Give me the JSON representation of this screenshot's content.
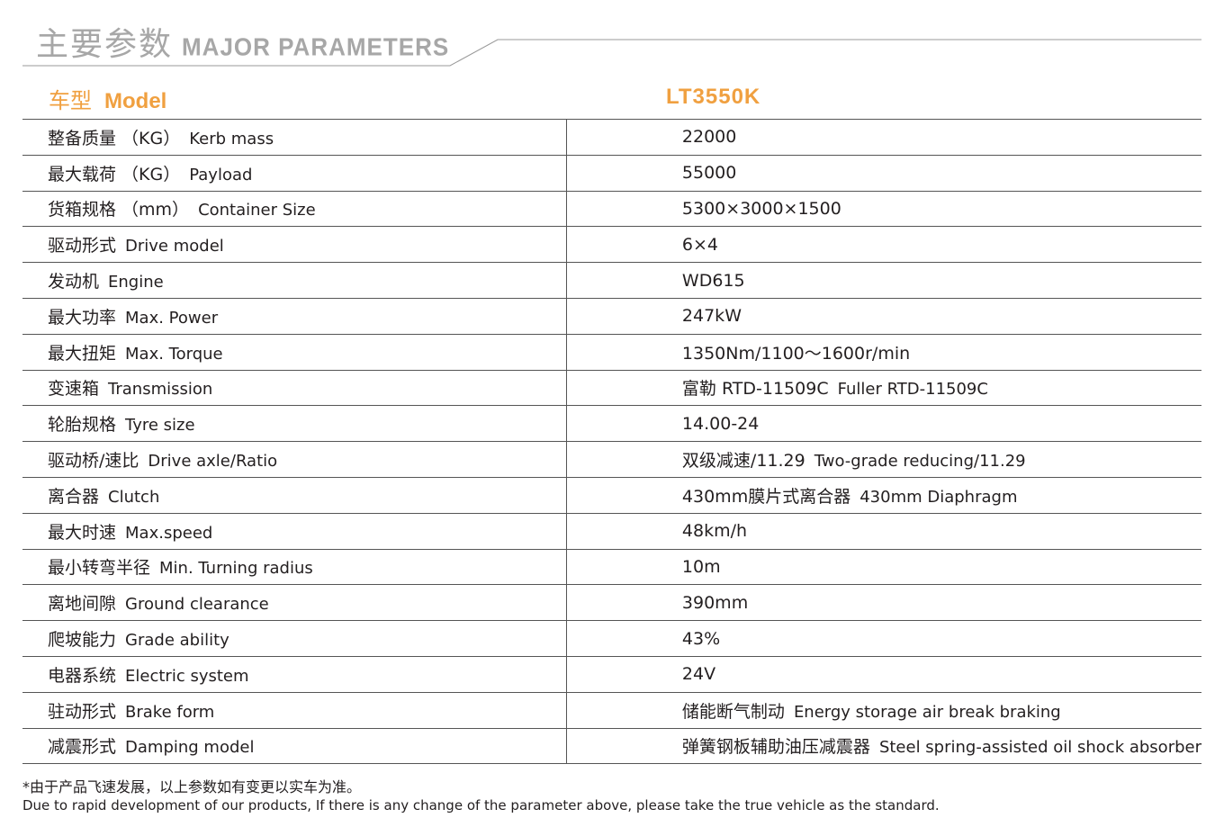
{
  "header": {
    "title_cn": "主要参数",
    "title_en": "MAJOR PARAMETERS"
  },
  "colors": {
    "accent": "#f0a040",
    "header_gray": "#a7a7a7"
  },
  "model": {
    "label_cn": "车型",
    "label_en": "Model",
    "value": "LT3550K"
  },
  "rows": [
    {
      "cn": "整备质量 （KG）",
      "en": "Kerb mass",
      "value": "22000",
      "value_en": ""
    },
    {
      "cn": "最大载荷 （KG）",
      "en": "Payload",
      "value": "55000",
      "value_en": ""
    },
    {
      "cn": "货箱规格 （mm）",
      "en": "Container Size",
      "value": "5300×3000×1500",
      "value_en": ""
    },
    {
      "cn": "驱动形式",
      "en": "Drive model",
      "value": "6×4",
      "value_en": ""
    },
    {
      "cn": "发动机",
      "en": "Engine",
      "value": "WD615",
      "value_en": ""
    },
    {
      "cn": "最大功率",
      "en": "Max. Power",
      "value": "247kW",
      "value_en": ""
    },
    {
      "cn": "最大扭矩",
      "en": "Max. Torque",
      "value": "1350Nm/1100～1600r/min",
      "value_en": ""
    },
    {
      "cn": "变速箱",
      "en": "Transmission",
      "value": "富勒 RTD-11509C",
      "value_en": "Fuller RTD-11509C"
    },
    {
      "cn": "轮胎规格",
      "en": "Tyre size",
      "value": "14.00-24",
      "value_en": ""
    },
    {
      "cn": "驱动桥/速比",
      "en": "Drive axle/Ratio",
      "value": "双级减速/11.29",
      "value_en": "Two-grade reducing/11.29"
    },
    {
      "cn": "离合器",
      "en": "Clutch",
      "value": "430mm膜片式离合器",
      "value_en": "430mm Diaphragm"
    },
    {
      "cn": "最大时速",
      "en": "Max.speed",
      "value": "48km/h",
      "value_en": ""
    },
    {
      "cn": "最小转弯半径",
      "en": "Min. Turning radius",
      "value": "10m",
      "value_en": ""
    },
    {
      "cn": "离地间隙",
      "en": "Ground clearance",
      "value": "390mm",
      "value_en": ""
    },
    {
      "cn": "爬坡能力",
      "en": "Grade ability",
      "value": "43%",
      "value_en": ""
    },
    {
      "cn": "电器系统",
      "en": "Electric system",
      "value": "24V",
      "value_en": ""
    },
    {
      "cn": "驻动形式",
      "en": "Brake form",
      "value": "储能断气制动",
      "value_en": "Energy storage air break braking"
    },
    {
      "cn": "减震形式",
      "en": "Damping model",
      "value": "弹簧钢板辅助油压减震器",
      "value_en": "Steel spring-assisted oil shock absorber"
    }
  ],
  "note": {
    "cn": "*由于产品飞速发展，以上参数如有变更以实车为准。",
    "en": "Due to rapid development of our products, If there is any change of the parameter above, please take the true vehicle as the standard."
  }
}
